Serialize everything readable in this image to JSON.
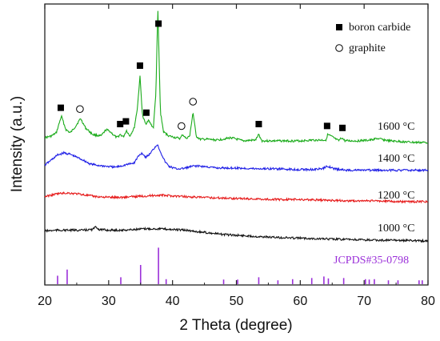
{
  "chart_data": {
    "type": "line",
    "xlabel": "2 Theta (degree)",
    "ylabel": "Intensity (a.u.)",
    "xlim": [
      20,
      80
    ],
    "xticks": [
      20,
      30,
      40,
      50,
      60,
      70,
      80
    ],
    "grid": false,
    "legend": {
      "position": "top-right",
      "entries": [
        {
          "label": "boron carbide",
          "marker": "filled-square"
        },
        {
          "label": "graphite",
          "marker": "open-circle"
        }
      ]
    },
    "series": [
      {
        "name": "1600 °C",
        "color": "#1aab1a",
        "x": [
          20,
          21,
          21.8,
          22.6,
          23.3,
          24,
          24.8,
          25.6,
          26.4,
          27.5,
          28.8,
          29.6,
          30.2,
          30.8,
          31.3,
          31.8,
          32.3,
          32.8,
          33.3,
          34,
          34.5,
          34.9,
          35.3,
          35.8,
          36.2,
          36.6,
          37,
          37.4,
          37.7,
          38.1,
          38.6,
          39.5,
          40.5,
          41.2,
          41.6,
          42.1,
          42.7,
          43.2,
          43.7,
          44.3,
          45.5,
          47,
          49.2,
          51,
          53,
          53.5,
          54,
          56,
          58,
          60,
          62,
          64,
          64.3,
          64.8,
          66,
          66.5,
          67,
          69,
          71,
          72,
          74,
          76,
          78,
          80
        ],
        "y": [
          0.18,
          0.2,
          0.24,
          0.45,
          0.28,
          0.24,
          0.32,
          0.42,
          0.3,
          0.22,
          0.2,
          0.28,
          0.26,
          0.21,
          0.18,
          0.22,
          0.19,
          0.27,
          0.2,
          0.3,
          0.55,
          0.95,
          0.45,
          0.35,
          0.4,
          0.35,
          0.3,
          0.75,
          1.8,
          0.5,
          0.25,
          0.2,
          0.18,
          0.17,
          0.22,
          0.17,
          0.2,
          0.5,
          0.2,
          0.16,
          0.16,
          0.15,
          0.18,
          0.14,
          0.15,
          0.22,
          0.14,
          0.14,
          0.14,
          0.14,
          0.15,
          0.15,
          0.22,
          0.2,
          0.14,
          0.18,
          0.14,
          0.14,
          0.15,
          0.17,
          0.14,
          0.13,
          0.12,
          0.12
        ]
      },
      {
        "name": "1400 °C",
        "color": "#1f1fe6",
        "x": [
          20,
          21,
          22,
          23,
          24,
          25,
          26,
          27,
          28,
          29,
          30,
          31,
          32,
          33,
          34,
          34.6,
          35.2,
          35.8,
          36.4,
          37,
          37.6,
          38.2,
          38.8,
          39.5,
          40.5,
          41.5,
          42.5,
          43.5,
          45,
          47,
          50,
          53,
          56,
          59,
          62,
          63.5,
          64.3,
          65.2,
          67,
          70,
          73,
          76,
          80
        ],
        "y": [
          0.13,
          0.2,
          0.27,
          0.3,
          0.28,
          0.24,
          0.2,
          0.15,
          0.13,
          0.12,
          0.11,
          0.1,
          0.12,
          0.14,
          0.16,
          0.25,
          0.3,
          0.24,
          0.28,
          0.35,
          0.42,
          0.3,
          0.18,
          0.11,
          0.08,
          0.08,
          0.1,
          0.12,
          0.11,
          0.09,
          0.09,
          0.08,
          0.08,
          0.07,
          0.07,
          0.08,
          0.12,
          0.08,
          0.06,
          0.06,
          0.06,
          0.06,
          0.06
        ]
      },
      {
        "name": "1200 °C",
        "color": "#e61a1a",
        "x": [
          20,
          21,
          22,
          23.5,
          25,
          26.5,
          28,
          30,
          32,
          34,
          36,
          38,
          40,
          42,
          44,
          48,
          52,
          56,
          60,
          64,
          68,
          72,
          76,
          80
        ],
        "y": [
          0.06,
          0.08,
          0.1,
          0.11,
          0.1,
          0.08,
          0.06,
          0.05,
          0.05,
          0.06,
          0.07,
          0.08,
          0.07,
          0.06,
          0.05,
          0.04,
          0.03,
          0.02,
          0.02,
          0.01,
          0.0,
          0.0,
          -0.01,
          -0.01
        ]
      },
      {
        "name": "1000 °C",
        "color": "#111111",
        "x": [
          20,
          22,
          24,
          26,
          27.5,
          28,
          28.5,
          30,
          32,
          34,
          36,
          38,
          40,
          42,
          44,
          46,
          48,
          52,
          56,
          60,
          64,
          68,
          72,
          76,
          80
        ],
        "y": [
          0.05,
          0.06,
          0.06,
          0.06,
          0.07,
          0.11,
          0.07,
          0.06,
          0.06,
          0.07,
          0.08,
          0.08,
          0.07,
          0.06,
          0.04,
          0.02,
          0.0,
          -0.02,
          -0.04,
          -0.05,
          -0.06,
          -0.07,
          -0.08,
          -0.08,
          -0.09
        ]
      }
    ],
    "series_labels": [
      "1600 °C",
      "1400 °C",
      "1200 °C",
      "1000 °C"
    ],
    "reference": {
      "label": "JCPDS#35-0798",
      "color": "#9b30d9",
      "x": [
        22,
        23.5,
        31.9,
        35,
        37.8,
        39,
        48,
        50.2,
        53.5,
        56.5,
        58.8,
        61.8,
        63.7,
        64.4,
        66.8,
        70.2,
        70.8,
        71.6,
        73.8,
        75.3,
        78.6,
        79.1
      ],
      "intensity": [
        0.22,
        0.38,
        0.18,
        0.5,
        0.95,
        0.13,
        0.12,
        0.12,
        0.18,
        0.1,
        0.13,
        0.16,
        0.2,
        0.15,
        0.16,
        0.13,
        0.12,
        0.13,
        0.1,
        0.1,
        0.1,
        0.1
      ]
    },
    "markers": {
      "boron_carbide_x": [
        22.5,
        31.8,
        32.7,
        34.9,
        35.9,
        37.8,
        53.5,
        64.2,
        66.6
      ],
      "graphite_x": [
        25.5,
        41.4,
        43.2
      ]
    }
  }
}
